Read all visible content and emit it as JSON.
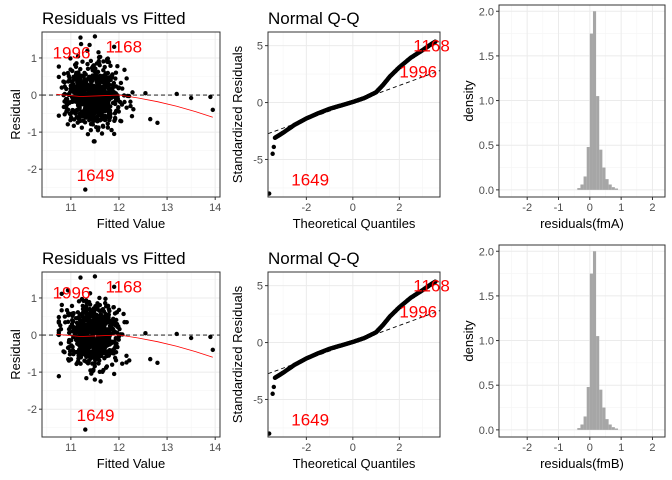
{
  "figure": {
    "background": "#ffffff",
    "panel_border": "#333333",
    "grid_major": "#ebebeb",
    "grid_minor": "#f5f5f5",
    "annotation_color": "#ff0000",
    "smooth_color": "#ff0000",
    "hist_fill": "#a6a6a6"
  },
  "chart_data": [
    {
      "type": "scatter",
      "title": "Residuals vs Fitted",
      "xlabel": "Fitted Value",
      "ylabel": "Residual",
      "xlim": [
        10.4,
        14.1
      ],
      "ylim": [
        -2.75,
        1.7
      ],
      "xticks": [
        11,
        12,
        13,
        14
      ],
      "yticks": [
        -2,
        -1,
        0,
        1
      ],
      "grid": true,
      "reference_line": {
        "y": 0,
        "style": "dashed"
      },
      "smooth": [
        [
          10.7,
          0.02
        ],
        [
          11.2,
          -0.04
        ],
        [
          11.6,
          -0.02
        ],
        [
          12.0,
          0.0
        ],
        [
          12.4,
          -0.08
        ],
        [
          12.8,
          -0.18
        ],
        [
          13.2,
          -0.3
        ],
        [
          13.6,
          -0.45
        ],
        [
          13.95,
          -0.6
        ]
      ],
      "annotations": [
        {
          "label": "1996",
          "x": 10.62,
          "y": 0.98
        },
        {
          "label": "1168",
          "x": 11.72,
          "y": 1.15
        },
        {
          "label": "1649",
          "x": 11.12,
          "y": -2.32
        }
      ],
      "notable_points": [
        [
          11.3,
          -2.55
        ],
        [
          11.9,
          1.3
        ],
        [
          11.9,
          -1.05
        ],
        [
          12.55,
          0.05
        ],
        [
          12.65,
          -0.65
        ],
        [
          12.8,
          -0.75
        ],
        [
          13.2,
          0.03
        ],
        [
          13.5,
          -0.08
        ],
        [
          13.9,
          -0.05
        ],
        [
          13.95,
          -0.4
        ],
        [
          11.2,
          1.55
        ],
        [
          11.5,
          1.58
        ]
      ],
      "cloud": {
        "x_center": 11.45,
        "x_spread": 0.5,
        "y_spread": 0.42,
        "n": 650,
        "seed": 7
      }
    },
    {
      "type": "scatter",
      "title": "Normal Q-Q",
      "xlabel": "Theoretical Quantiles",
      "ylabel": "Standardized Residuals",
      "xlim": [
        -3.65,
        3.75
      ],
      "ylim": [
        -8.3,
        6.2
      ],
      "xticks": [
        -2,
        0,
        2
      ],
      "yticks": [
        -5,
        0,
        5
      ],
      "grid": true,
      "reference_line": {
        "slope": 0.75,
        "intercept": 0,
        "style": "dashed"
      },
      "qq_curve": [
        [
          -3.35,
          -3.1
        ],
        [
          -3.0,
          -2.65
        ],
        [
          -2.5,
          -1.95
        ],
        [
          -2.0,
          -1.4
        ],
        [
          -1.5,
          -0.95
        ],
        [
          -1.0,
          -0.55
        ],
        [
          -0.5,
          -0.25
        ],
        [
          0.0,
          0.05
        ],
        [
          0.5,
          0.4
        ],
        [
          1.0,
          0.9
        ],
        [
          1.3,
          1.55
        ],
        [
          1.6,
          2.3
        ],
        [
          2.0,
          3.1
        ],
        [
          2.5,
          3.95
        ],
        [
          3.0,
          4.6
        ],
        [
          3.35,
          5.1
        ],
        [
          3.55,
          5.35
        ]
      ],
      "qq_outliers": [
        [
          -3.6,
          -8.0
        ],
        [
          -3.45,
          -4.5
        ],
        [
          -3.4,
          -3.9
        ]
      ],
      "annotations": [
        {
          "label": "1168",
          "x": 2.6,
          "y": 4.5
        },
        {
          "label": "1996",
          "x": 2.0,
          "y": 2.2
        },
        {
          "label": "1649",
          "x": -2.65,
          "y": -7.3
        }
      ]
    },
    {
      "type": "histogram",
      "title": "",
      "xlabel": "residuals(fmA)",
      "ylabel": "density",
      "xlim": [
        -2.9,
        2.4
      ],
      "ylim": [
        -0.08,
        2.07
      ],
      "xticks": [
        -2,
        -1,
        0,
        1,
        2
      ],
      "yticks": [
        0.0,
        0.5,
        1.0,
        1.5,
        2.0
      ],
      "grid": true,
      "bins": [
        {
          "start": -0.4,
          "end": -0.3,
          "density": 0.02
        },
        {
          "start": -0.3,
          "end": -0.2,
          "density": 0.06
        },
        {
          "start": -0.2,
          "end": -0.1,
          "density": 0.15
        },
        {
          "start": -0.1,
          "end": 0.0,
          "density": 0.48
        },
        {
          "start": 0.0,
          "end": 0.1,
          "density": 1.75
        },
        {
          "start": 0.1,
          "end": 0.2,
          "density": 2.0
        },
        {
          "start": 0.2,
          "end": 0.3,
          "density": 1.05
        },
        {
          "start": 0.3,
          "end": 0.4,
          "density": 0.45
        },
        {
          "start": 0.4,
          "end": 0.5,
          "density": 0.25
        },
        {
          "start": 0.5,
          "end": 0.6,
          "density": 0.12
        },
        {
          "start": 0.6,
          "end": 0.7,
          "density": 0.06
        },
        {
          "start": 0.7,
          "end": 0.8,
          "density": 0.03
        },
        {
          "start": 0.8,
          "end": 0.9,
          "density": 0.015
        }
      ]
    },
    {
      "type": "scatter",
      "title": "Residuals vs Fitted",
      "xlabel": "Fitted Value",
      "ylabel": "Residual",
      "xlim": [
        10.4,
        14.1
      ],
      "ylim": [
        -2.75,
        1.7
      ],
      "xticks": [
        11,
        12,
        13,
        14
      ],
      "yticks": [
        -2,
        -1,
        0,
        1
      ],
      "grid": true,
      "reference_line": {
        "y": 0,
        "style": "dashed"
      },
      "smooth": [
        [
          10.7,
          0.02
        ],
        [
          11.2,
          -0.04
        ],
        [
          11.6,
          -0.02
        ],
        [
          12.0,
          0.0
        ],
        [
          12.4,
          -0.08
        ],
        [
          12.8,
          -0.18
        ],
        [
          13.2,
          -0.3
        ],
        [
          13.6,
          -0.45
        ],
        [
          13.95,
          -0.6
        ]
      ],
      "annotations": [
        {
          "label": "1996",
          "x": 10.62,
          "y": 0.98
        },
        {
          "label": "1168",
          "x": 11.72,
          "y": 1.15
        },
        {
          "label": "1649",
          "x": 11.12,
          "y": -2.32
        }
      ],
      "notable_points": [
        [
          11.3,
          -2.55
        ],
        [
          11.9,
          1.3
        ],
        [
          11.9,
          -1.05
        ],
        [
          12.55,
          0.05
        ],
        [
          12.65,
          -0.65
        ],
        [
          12.8,
          -0.75
        ],
        [
          13.2,
          0.03
        ],
        [
          13.5,
          -0.08
        ],
        [
          13.9,
          -0.05
        ],
        [
          13.95,
          -0.4
        ],
        [
          11.2,
          1.55
        ],
        [
          11.5,
          1.58
        ]
      ],
      "cloud": {
        "x_center": 11.45,
        "x_spread": 0.5,
        "y_spread": 0.42,
        "n": 650,
        "seed": 13
      }
    },
    {
      "type": "scatter",
      "title": "Normal Q-Q",
      "xlabel": "Theoretical Quantiles",
      "ylabel": "Standardized Residuals",
      "xlim": [
        -3.65,
        3.75
      ],
      "ylim": [
        -8.3,
        6.2
      ],
      "xticks": [
        -2,
        0,
        2
      ],
      "yticks": [
        -5,
        0,
        5
      ],
      "grid": true,
      "reference_line": {
        "slope": 0.75,
        "intercept": 0,
        "style": "dashed"
      },
      "qq_curve": [
        [
          -3.35,
          -3.1
        ],
        [
          -3.0,
          -2.65
        ],
        [
          -2.5,
          -1.95
        ],
        [
          -2.0,
          -1.4
        ],
        [
          -1.5,
          -0.95
        ],
        [
          -1.0,
          -0.55
        ],
        [
          -0.5,
          -0.25
        ],
        [
          0.0,
          0.05
        ],
        [
          0.5,
          0.4
        ],
        [
          1.0,
          0.9
        ],
        [
          1.3,
          1.55
        ],
        [
          1.6,
          2.3
        ],
        [
          2.0,
          3.1
        ],
        [
          2.5,
          3.95
        ],
        [
          3.0,
          4.6
        ],
        [
          3.35,
          5.1
        ],
        [
          3.55,
          5.35
        ]
      ],
      "qq_outliers": [
        [
          -3.6,
          -8.0
        ],
        [
          -3.45,
          -4.5
        ],
        [
          -3.4,
          -3.9
        ]
      ],
      "annotations": [
        {
          "label": "1168",
          "x": 2.6,
          "y": 4.5
        },
        {
          "label": "1996",
          "x": 2.0,
          "y": 2.2
        },
        {
          "label": "1649",
          "x": -2.65,
          "y": -7.3
        }
      ]
    },
    {
      "type": "histogram",
      "title": "",
      "xlabel": "residuals(fmB)",
      "ylabel": "density",
      "xlim": [
        -2.9,
        2.4
      ],
      "ylim": [
        -0.08,
        2.07
      ],
      "xticks": [
        -2,
        -1,
        0,
        1,
        2
      ],
      "yticks": [
        0.0,
        0.5,
        1.0,
        1.5,
        2.0
      ],
      "grid": true,
      "bins": [
        {
          "start": -0.4,
          "end": -0.3,
          "density": 0.02
        },
        {
          "start": -0.3,
          "end": -0.2,
          "density": 0.06
        },
        {
          "start": -0.2,
          "end": -0.1,
          "density": 0.15
        },
        {
          "start": -0.1,
          "end": 0.0,
          "density": 0.48
        },
        {
          "start": 0.0,
          "end": 0.1,
          "density": 1.75
        },
        {
          "start": 0.1,
          "end": 0.2,
          "density": 2.0
        },
        {
          "start": 0.2,
          "end": 0.3,
          "density": 1.05
        },
        {
          "start": 0.3,
          "end": 0.4,
          "density": 0.45
        },
        {
          "start": 0.4,
          "end": 0.5,
          "density": 0.25
        },
        {
          "start": 0.5,
          "end": 0.6,
          "density": 0.12
        },
        {
          "start": 0.6,
          "end": 0.7,
          "density": 0.06
        },
        {
          "start": 0.7,
          "end": 0.8,
          "density": 0.03
        },
        {
          "start": 0.8,
          "end": 0.9,
          "density": 0.015
        }
      ]
    }
  ]
}
